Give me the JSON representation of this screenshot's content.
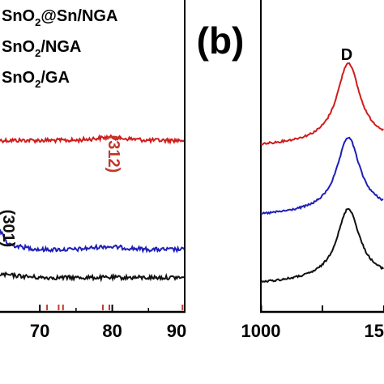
{
  "chart_data": [
    {
      "panel": "a",
      "type": "line",
      "x_ticks": [
        70,
        80,
        90
      ],
      "xlim": [
        64.5,
        90
      ],
      "legend": [
        {
          "text": "SnO2@Sn/NGA",
          "parts": [
            "SnO",
            "2",
            "@Sn/NGA"
          ],
          "color": "#d01c1c"
        },
        {
          "text": "SnO2/NGA",
          "parts": [
            "SnO",
            "2",
            "/NGA"
          ],
          "color": "#1f1fb8"
        },
        {
          "text": "SnO2/GA",
          "parts": [
            "SnO",
            "2",
            "/GA"
          ],
          "color": "#111111"
        }
      ],
      "annotations": [
        {
          "text": "(312)",
          "x": 79.5,
          "color": "#c0392b"
        },
        {
          "text": "(301)",
          "x": 64.9,
          "color": "#111111"
        }
      ],
      "reference_ticks": [
        {
          "x": 71.0,
          "color": "#c0392b"
        },
        {
          "x": 72.6,
          "color": "#c0392b"
        },
        {
          "x": 73.2,
          "color": "#c0392b"
        },
        {
          "x": 78.7,
          "color": "#c0392b"
        },
        {
          "x": 79.6,
          "color": "#c0392b"
        },
        {
          "x": 89.7,
          "color": "#c0392b"
        }
      ],
      "series": [
        {
          "name": "SnO2@Sn/NGA",
          "color": "#d01c1c",
          "x": [
            64.5,
            70,
            75,
            79.5,
            85,
            90
          ],
          "y": [
            0.55,
            0.55,
            0.55,
            0.56,
            0.55,
            0.55
          ]
        },
        {
          "name": "SnO2/NGA",
          "color": "#1f1fb8",
          "x": [
            64.5,
            65.5,
            67,
            70,
            75,
            79,
            85,
            90
          ],
          "y": [
            0.26,
            0.22,
            0.21,
            0.2,
            0.2,
            0.21,
            0.2,
            0.2
          ]
        },
        {
          "name": "SnO2/GA",
          "color": "#111111",
          "x": [
            64.5,
            70,
            75,
            80,
            85,
            90
          ],
          "y": [
            0.12,
            0.11,
            0.11,
            0.11,
            0.11,
            0.11
          ]
        }
      ]
    },
    {
      "panel": "b",
      "type": "line",
      "panel_label": "(b)",
      "x_ticks": [
        1000,
        "15"
      ],
      "xlim": [
        1000,
        1180
      ],
      "annotations": [
        {
          "text": "D",
          "x": 1350
        }
      ],
      "series": [
        {
          "name": "SnO2@Sn/NGA",
          "color": "#d01c1c",
          "peak_x": 1350
        },
        {
          "name": "SnO2/NGA",
          "color": "#1f1fb8",
          "peak_x": 1350
        },
        {
          "name": "SnO2/GA",
          "color": "#111111",
          "peak_x": 1350
        }
      ]
    }
  ]
}
